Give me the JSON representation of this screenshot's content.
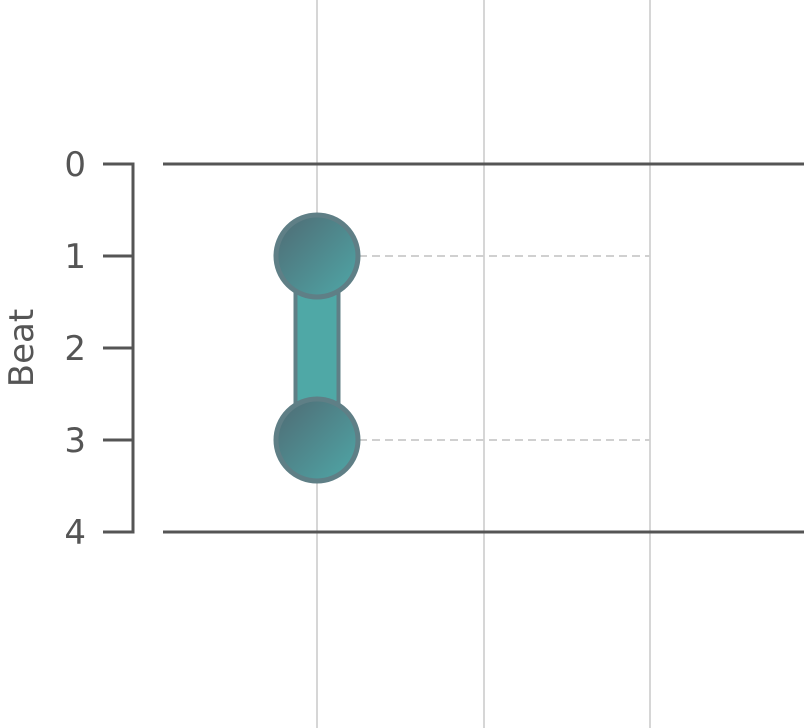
{
  "chart_data": {
    "type": "dumbbell",
    "ylabel": "Beat",
    "y_ticks": [
      0,
      1,
      2,
      3,
      4
    ],
    "ylim": [
      0,
      4
    ],
    "y_inverted": true,
    "x_gridlines": 3,
    "grid": "vertical",
    "series": [
      {
        "x_index": 0,
        "start": 1,
        "end": 3
      }
    ],
    "colors": {
      "bar": "#4fa8a6",
      "bar_stroke": "#5f7f86",
      "dot_dark": "#4f6a73",
      "dot_light": "#4fa8a8",
      "dot_stroke": "#5f7f86",
      "axis": "#555555",
      "grid": "#d6d6d6",
      "guide": "#d0d0d0"
    }
  }
}
